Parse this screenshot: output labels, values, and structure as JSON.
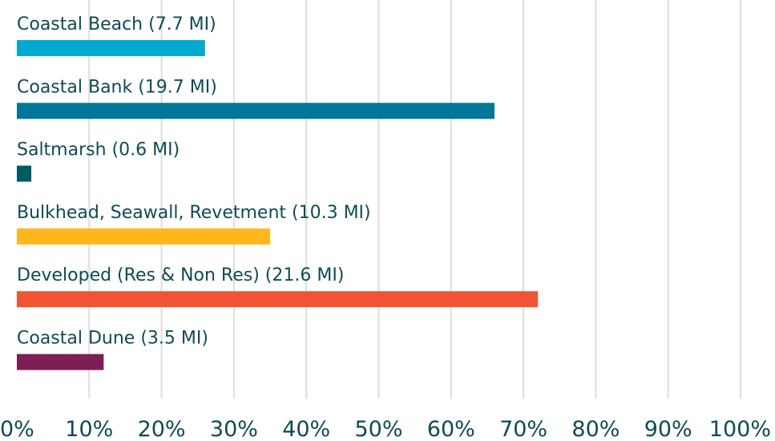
{
  "chart_data": {
    "type": "bar",
    "orientation": "horizontal",
    "categories": [
      "Coastal Beach (7.7 MI)",
      "Coastal Bank (19.7 MI)",
      "Saltmarsh (0.6 MI)",
      "Bulkhead, Seawall, Revetment (10.3 MI)",
      "Developed (Res & Non Res) (21.6 MI)",
      "Coastal Dune (3.5 MI)"
    ],
    "values": [
      26,
      66,
      2,
      35,
      72,
      12
    ],
    "colors": [
      "#00a9ce",
      "#007698",
      "#005a62",
      "#ffb81c",
      "#f05533",
      "#7d1f55"
    ],
    "xlim": [
      0,
      100
    ],
    "xticks": [
      0,
      10,
      20,
      30,
      40,
      50,
      60,
      70,
      80,
      90,
      100
    ],
    "xtick_labels": [
      "0%",
      "10%",
      "20%",
      "30%",
      "40%",
      "50%",
      "60%",
      "70%",
      "80%",
      "90%",
      "100%"
    ],
    "grid": true,
    "grid_axis": "x",
    "label_color": "#0e4b54",
    "grid_color": "#dddddd"
  }
}
